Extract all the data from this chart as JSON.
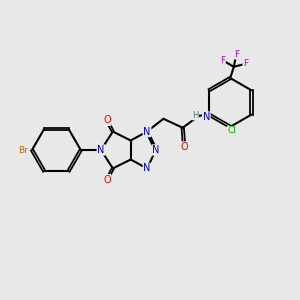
{
  "background_color": "#e8e8e8",
  "atom_colors": {
    "N": "#0000cc",
    "O": "#ff0000",
    "Br": "#cc6600",
    "Cl": "#00aa00",
    "F": "#cc00cc",
    "C": "#000000",
    "H": "#407070"
  },
  "bond_color": "#000000",
  "bond_width": 1.5,
  "figsize": [
    3.0,
    3.0
  ],
  "dpi": 100
}
